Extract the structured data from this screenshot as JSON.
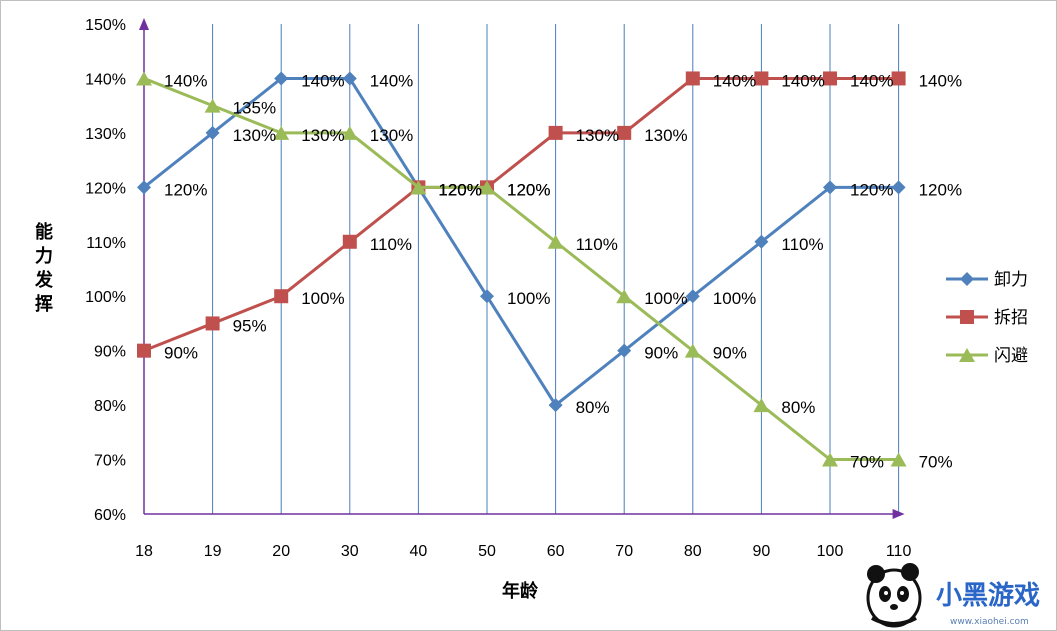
{
  "chart_data": {
    "type": "line",
    "categories": [
      "18",
      "19",
      "20",
      "30",
      "40",
      "50",
      "60",
      "70",
      "80",
      "90",
      "100",
      "110"
    ],
    "xlabel": "年龄",
    "ylabel": "能力发挥",
    "ylim": [
      60,
      150
    ],
    "ytick_step": 10,
    "ytick_suffix": "%",
    "grid": "vertical",
    "legend_position": "right",
    "series": [
      {
        "name": "卸力",
        "color": "#4f81bd",
        "marker": "diamond",
        "values": [
          120,
          130,
          140,
          140,
          120,
          100,
          80,
          90,
          100,
          110,
          120,
          120
        ]
      },
      {
        "name": "拆招",
        "color": "#c0504d",
        "marker": "square",
        "values": [
          90,
          95,
          100,
          110,
          120,
          120,
          130,
          130,
          140,
          140,
          140,
          140
        ]
      },
      {
        "name": "闪避",
        "color": "#9bbb59",
        "marker": "triangle",
        "values": [
          140,
          135,
          130,
          130,
          120,
          120,
          110,
          100,
          90,
          80,
          70,
          70
        ]
      }
    ]
  },
  "watermark": {
    "text": "小黑游戏",
    "url": "www.xiaohei.com",
    "colors": {
      "blue": "#2a66c8",
      "black": "#111111",
      "pink": "#e0339b"
    }
  }
}
